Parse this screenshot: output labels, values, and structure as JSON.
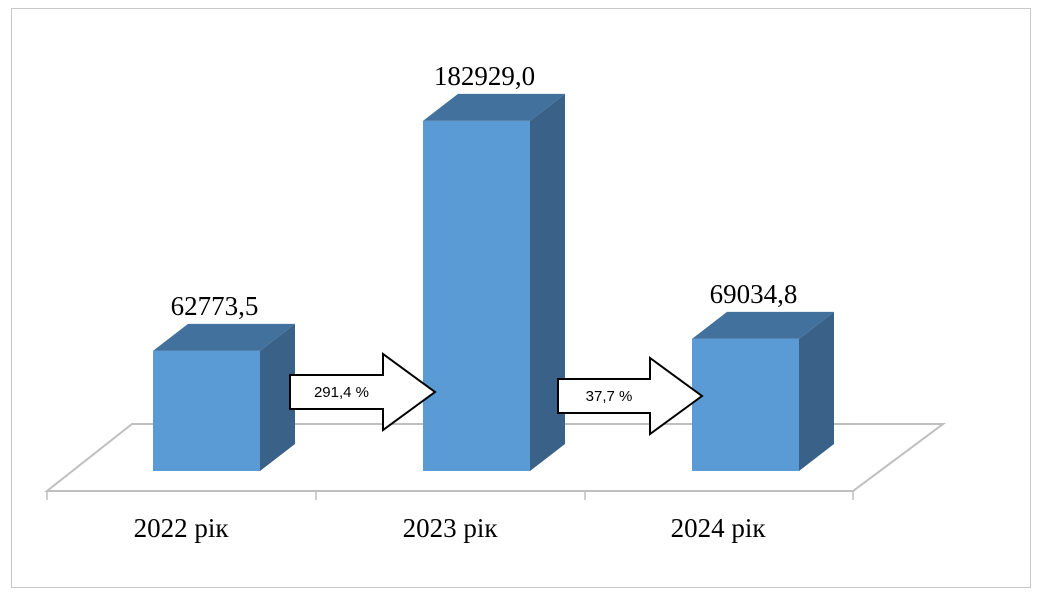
{
  "chart_data": {
    "type": "bar",
    "categories": [
      "2022 рік",
      "2023 рік",
      "2024 рік"
    ],
    "values": [
      62773.5,
      182929.0,
      69034.8
    ],
    "data_labels": [
      "62773,5",
      "182929,0",
      "69034,8"
    ],
    "annotations": [
      "291,4 %",
      "37,7 %"
    ],
    "title": "",
    "xlabel": "",
    "ylabel": "",
    "ylim": [
      0,
      200000
    ],
    "grid": false,
    "legend": "none",
    "style": "3d-column",
    "colors": {
      "bar_front": "#5b9bd5",
      "bar_top": "#41719c",
      "bar_side": "#3a6187",
      "floor_stroke": "#bfbfbf",
      "arrow_fill": "#ffffff",
      "arrow_stroke": "#000000"
    }
  }
}
